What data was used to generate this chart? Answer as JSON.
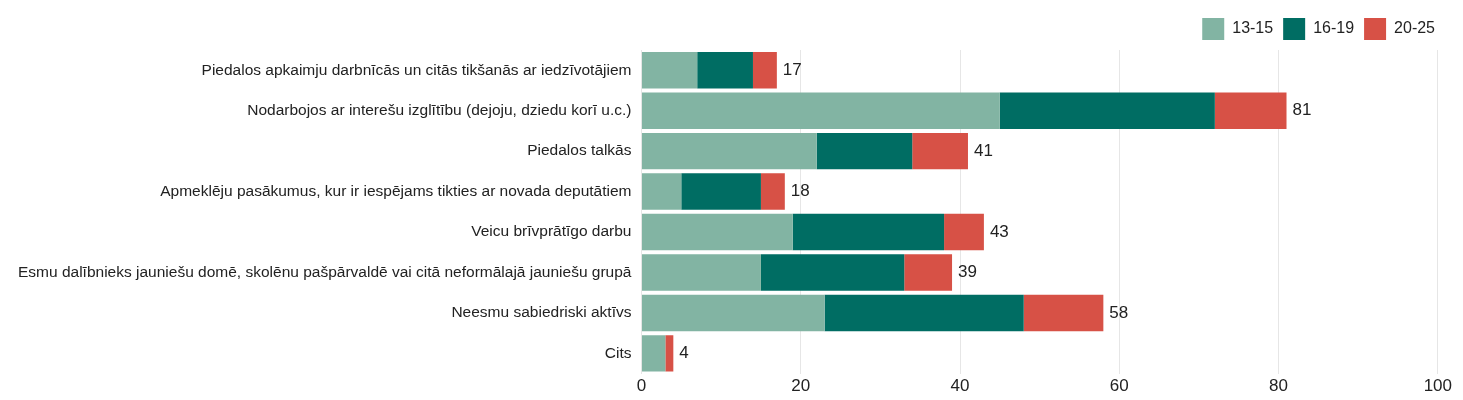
{
  "chart_data": {
    "type": "bar",
    "orientation": "horizontal",
    "stacked": true,
    "categories": [
      "Piedalos apkaimju darbnīcās un citās tikšanās ar iedzīvotājiem",
      "Nodarbojos ar interešu izglītību (dejoju, dziedu korī u.c.)",
      "Piedalos talkās",
      "Apmeklēju pasākumus, kur ir iespējams tikties ar novada deputātiem",
      "Veicu brīvprātīgo darbu",
      "Esmu dalībnieks jauniešu domē, skolēnu pašpārvaldē vai citā neformālajā jauniešu grupā",
      "Neesmu sabiedriski aktīvs",
      "Cits"
    ],
    "series": [
      {
        "name": "13-15",
        "color": "#82b4a3",
        "values": [
          7,
          45,
          22,
          5,
          19,
          15,
          23,
          3
        ]
      },
      {
        "name": "16-19",
        "color": "#006d63",
        "values": [
          7,
          27,
          12,
          10,
          19,
          18,
          25,
          0
        ]
      },
      {
        "name": "20-25",
        "color": "#d75146",
        "values": [
          3,
          9,
          7,
          3,
          5,
          6,
          10,
          1
        ]
      }
    ],
    "totals": [
      "17",
      "81",
      "41",
      "18",
      "43",
      "39",
      "58",
      "4"
    ],
    "xlim": [
      0,
      100
    ],
    "xticks": [
      0,
      20,
      40,
      60,
      80,
      100
    ],
    "grid": "x",
    "legend": "top right"
  }
}
